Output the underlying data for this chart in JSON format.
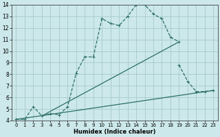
{
  "xlabel": "Humidex (Indice chaleur)",
  "bg_color": "#cce8ea",
  "grid_color": "#aacdd0",
  "line_color": "#2a6e65",
  "xlim": [
    -0.5,
    23.5
  ],
  "ylim": [
    4,
    14
  ],
  "xticks": [
    0,
    1,
    2,
    3,
    4,
    5,
    6,
    7,
    8,
    9,
    10,
    11,
    12,
    13,
    14,
    15,
    16,
    17,
    18,
    19,
    20,
    21,
    22,
    23
  ],
  "yticks": [
    4,
    5,
    6,
    7,
    8,
    9,
    10,
    11,
    12,
    13,
    14
  ],
  "line_dotted": {
    "x": [
      0,
      1,
      2,
      3,
      4,
      5,
      6,
      7,
      8,
      9,
      10,
      11,
      12,
      13,
      14,
      15,
      16,
      17,
      18,
      19
    ],
    "y": [
      4.1,
      4.1,
      5.2,
      4.4,
      4.6,
      4.5,
      5.2,
      8.1,
      9.5,
      9.5,
      12.8,
      12.4,
      12.2,
      13.0,
      14.0,
      14.0,
      13.2,
      12.8,
      11.2,
      10.8
    ]
  },
  "line_tail": {
    "x": [
      19,
      20,
      21,
      22,
      23
    ],
    "y": [
      8.8,
      7.4,
      6.5,
      6.5,
      6.6
    ]
  },
  "line_lower": {
    "x": [
      0,
      23
    ],
    "y": [
      4.1,
      6.6
    ]
  },
  "line_upper": {
    "x": [
      3,
      19
    ],
    "y": [
      4.4,
      10.8
    ]
  }
}
